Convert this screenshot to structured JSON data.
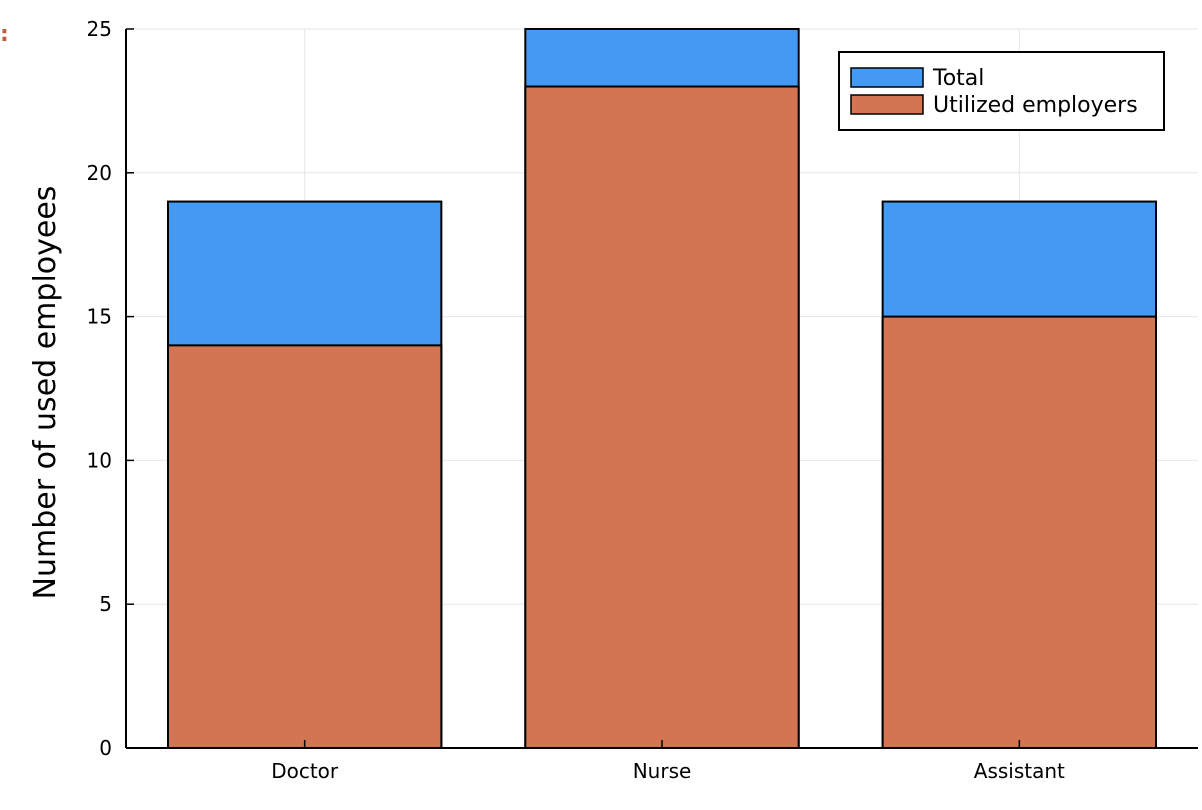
{
  "corner_mark": ":",
  "chart_data": {
    "type": "bar",
    "stacked_overlay": true,
    "categories": [
      "Doctor",
      "Nurse",
      "Assistant"
    ],
    "series": [
      {
        "name": "Total",
        "values": [
          19,
          25,
          19
        ],
        "color": "#4499f2"
      },
      {
        "name": "Utilized employers",
        "values": [
          14,
          23,
          15
        ],
        "color": "#d37553"
      }
    ],
    "title": "",
    "xlabel": "",
    "ylabel": "Number of used employees",
    "ylim": [
      0,
      25
    ],
    "yticks": [
      0,
      5,
      10,
      15,
      20,
      25
    ],
    "grid": true,
    "legend_position": "top-right"
  }
}
